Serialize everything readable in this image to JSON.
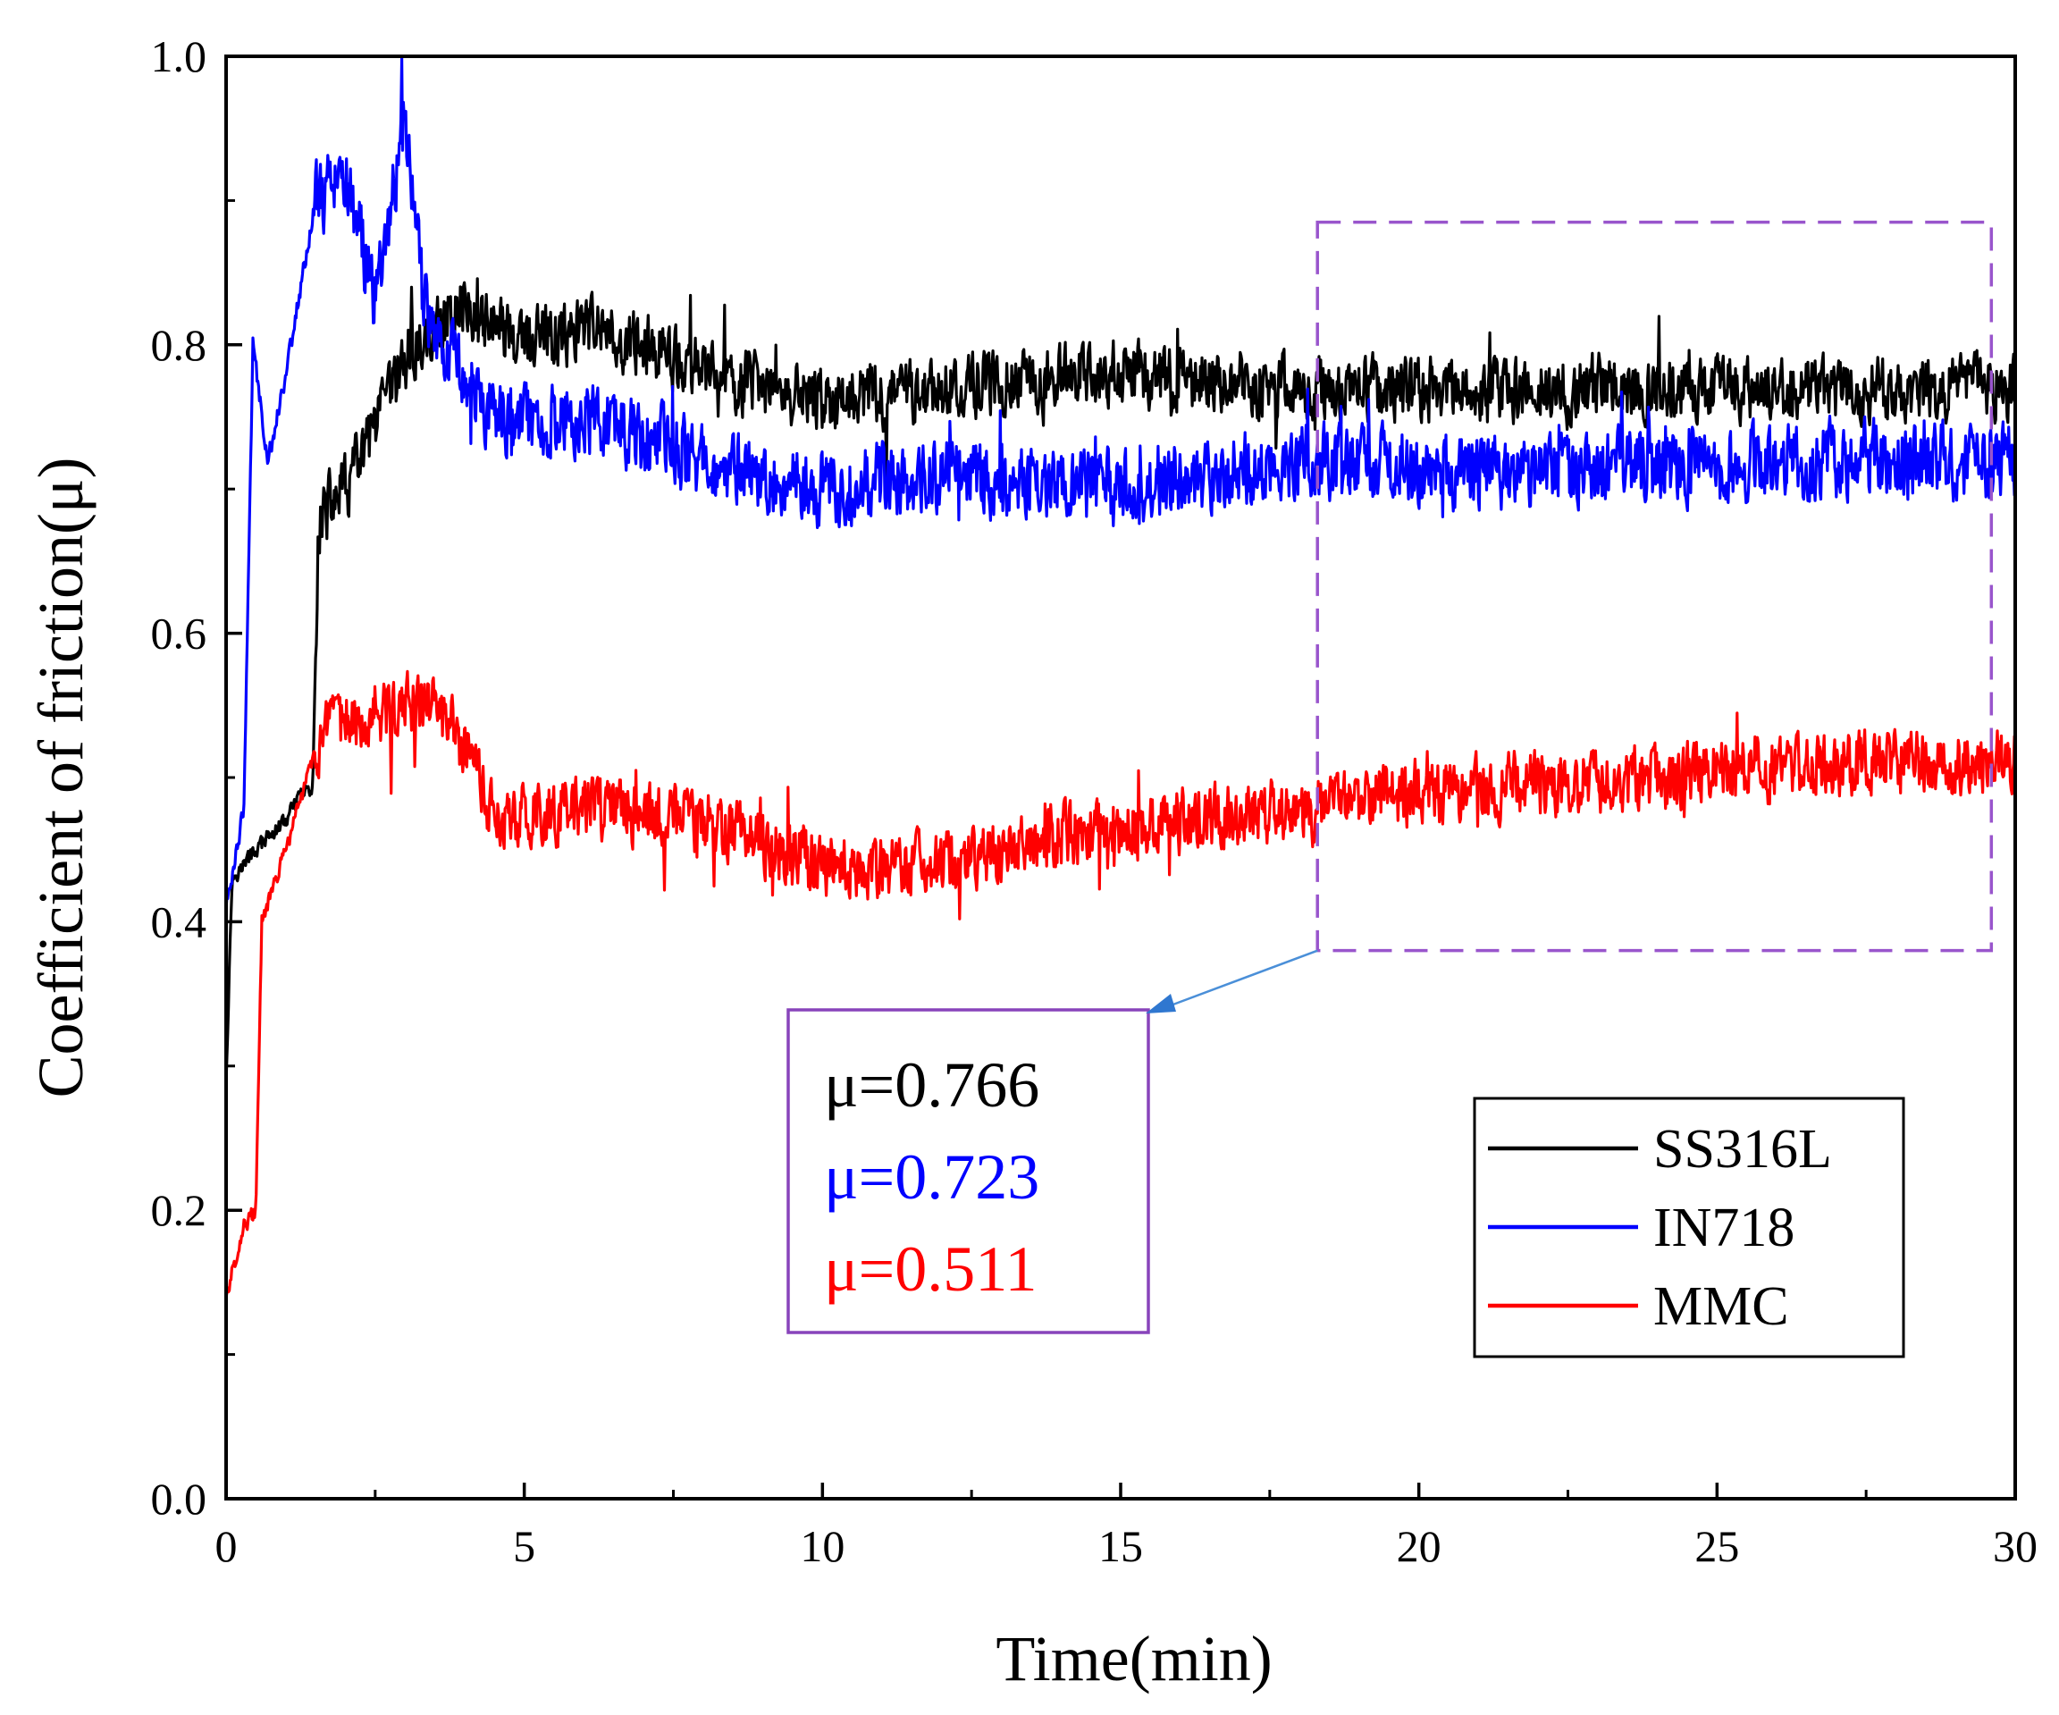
{
  "chart_data": {
    "type": "line",
    "title": "",
    "xlabel": "Time(min)",
    "ylabel": "Coefficient of friction(μ)",
    "xlim": [
      0,
      30
    ],
    "ylim": [
      0,
      1.0
    ],
    "xticks": [
      "0",
      "5",
      "10",
      "15",
      "20",
      "25",
      "30"
    ],
    "yticks": [
      "0.0",
      "0.2",
      "0.4",
      "0.6",
      "0.8",
      "1.0"
    ],
    "legend_position": "bottom-right",
    "series": [
      {
        "name": "SS316L",
        "color": "#000000",
        "mean": 0.766,
        "noise": 0.03,
        "profile": [
          [
            0,
            0.29
          ],
          [
            0.1,
            0.43
          ],
          [
            0.5,
            0.45
          ],
          [
            1.0,
            0.47
          ],
          [
            1.3,
            0.49
          ],
          [
            1.45,
            0.49
          ],
          [
            1.55,
            0.68
          ],
          [
            2.0,
            0.7
          ],
          [
            2.5,
            0.74
          ],
          [
            3.0,
            0.79
          ],
          [
            3.5,
            0.81
          ],
          [
            4.0,
            0.83
          ],
          [
            5.0,
            0.8
          ],
          [
            6.0,
            0.81
          ],
          [
            7.0,
            0.8
          ],
          [
            8.0,
            0.78
          ],
          [
            10.0,
            0.76
          ],
          [
            12.0,
            0.77
          ],
          [
            15.0,
            0.78
          ],
          [
            18.0,
            0.77
          ],
          [
            22.0,
            0.77
          ],
          [
            26.0,
            0.77
          ],
          [
            30.0,
            0.77
          ]
        ]
      },
      {
        "name": "IN718",
        "color": "#0000ff",
        "mean": 0.723,
        "noise": 0.035,
        "profile": [
          [
            0,
            0.41
          ],
          [
            0.3,
            0.48
          ],
          [
            0.45,
            0.8
          ],
          [
            0.7,
            0.72
          ],
          [
            1.0,
            0.78
          ],
          [
            1.5,
            0.9
          ],
          [
            2.0,
            0.92
          ],
          [
            2.5,
            0.83
          ],
          [
            3.0,
            0.96
          ],
          [
            3.3,
            0.83
          ],
          [
            3.7,
            0.8
          ],
          [
            4.5,
            0.75
          ],
          [
            6.0,
            0.75
          ],
          [
            8.0,
            0.72
          ],
          [
            10.0,
            0.7
          ],
          [
            12.0,
            0.71
          ],
          [
            15.0,
            0.7
          ],
          [
            18.0,
            0.72
          ],
          [
            22.0,
            0.71
          ],
          [
            26.0,
            0.72
          ],
          [
            30.0,
            0.72
          ]
        ]
      },
      {
        "name": "MMC",
        "color": "#ff0000",
        "mean": 0.511,
        "noise": 0.03,
        "profile": [
          [
            0,
            0.14
          ],
          [
            0.3,
            0.19
          ],
          [
            0.5,
            0.2
          ],
          [
            0.6,
            0.4
          ],
          [
            1.0,
            0.45
          ],
          [
            1.5,
            0.52
          ],
          [
            2.0,
            0.54
          ],
          [
            3.0,
            0.55
          ],
          [
            3.5,
            0.55
          ],
          [
            4.0,
            0.52
          ],
          [
            4.5,
            0.47
          ],
          [
            6.0,
            0.48
          ],
          [
            8.0,
            0.47
          ],
          [
            10.0,
            0.44
          ],
          [
            12.0,
            0.44
          ],
          [
            14.0,
            0.46
          ],
          [
            16.0,
            0.47
          ],
          [
            18.0,
            0.48
          ],
          [
            20.0,
            0.49
          ],
          [
            24.0,
            0.5
          ],
          [
            27.0,
            0.51
          ],
          [
            30.0,
            0.51
          ]
        ]
      }
    ],
    "annotations": {
      "highlight_region": {
        "x": [
          18.3,
          29.6
        ],
        "y": [
          0.38,
          0.885
        ],
        "style": "dashed",
        "color": "#9955cc"
      },
      "mean_values_box": {
        "lines": [
          {
            "text": "μ=0.766",
            "color": "#000000"
          },
          {
            "text": "μ=0.723",
            "color": "#0000ff"
          },
          {
            "text": "μ=0.511",
            "color": "#ff0000"
          }
        ]
      }
    }
  }
}
